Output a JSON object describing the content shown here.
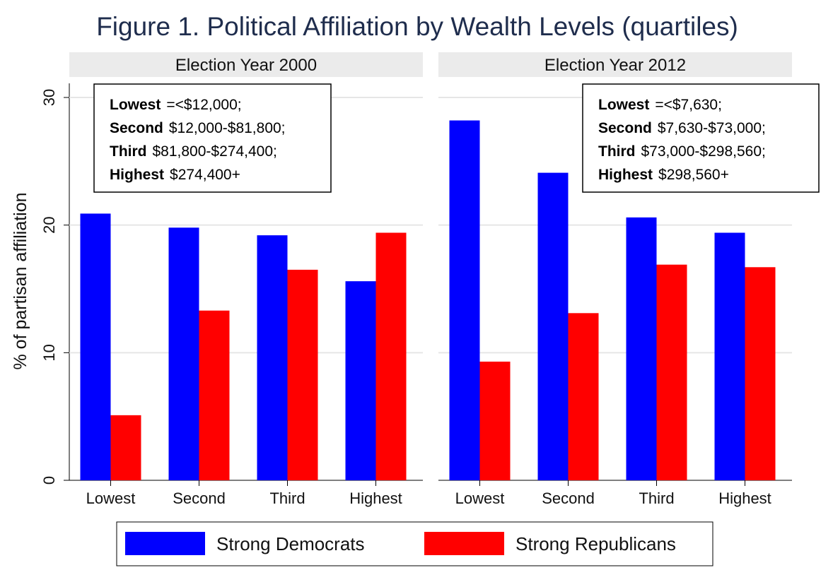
{
  "chart_data": {
    "type": "bar",
    "title": "Figure 1. Political Affiliation by Wealth Levels (quartiles)",
    "ylabel": "% of partisan affiliation",
    "ylim": [
      0,
      30
    ],
    "yticks": [
      "0",
      "10",
      "20",
      "30"
    ],
    "grid": true,
    "legend_position": "bottom",
    "colors": {
      "democrats": "#0000ff",
      "republicans": "#ff0000",
      "strip": "#ebebeb",
      "title": "#1f2d4d"
    },
    "categories": [
      "Lowest",
      "Second",
      "Third",
      "Highest"
    ],
    "panels": [
      {
        "label": "Election Year 2000",
        "series": [
          {
            "name": "Strong Democrats",
            "values": [
              20.9,
              19.8,
              19.2,
              15.6
            ]
          },
          {
            "name": "Strong Republicans",
            "values": [
              5.1,
              13.3,
              16.5,
              19.4
            ]
          }
        ],
        "note": [
          {
            "bold": "Lowest",
            "text": "=<$12,000;"
          },
          {
            "bold": "Second",
            "text": "$12,000-$81,800;"
          },
          {
            "bold": "Third",
            "text": "$81,800-$274,400;"
          },
          {
            "bold": "Highest",
            "text": "$274,400+"
          }
        ]
      },
      {
        "label": "Election Year 2012",
        "series": [
          {
            "name": "Strong Democrats",
            "values": [
              28.2,
              24.1,
              20.6,
              19.4
            ]
          },
          {
            "name": "Strong Republicans",
            "values": [
              9.3,
              13.1,
              16.9,
              16.7
            ]
          }
        ],
        "note": [
          {
            "bold": "Lowest",
            "text": "=<$7,630;"
          },
          {
            "bold": "Second",
            "text": "$7,630-$73,000;"
          },
          {
            "bold": "Third",
            "text": "$73,000-$298,560;"
          },
          {
            "bold": "Highest",
            "text": "$298,560+"
          }
        ]
      }
    ],
    "legend": [
      "Strong Democrats",
      "Strong Republicans"
    ]
  }
}
